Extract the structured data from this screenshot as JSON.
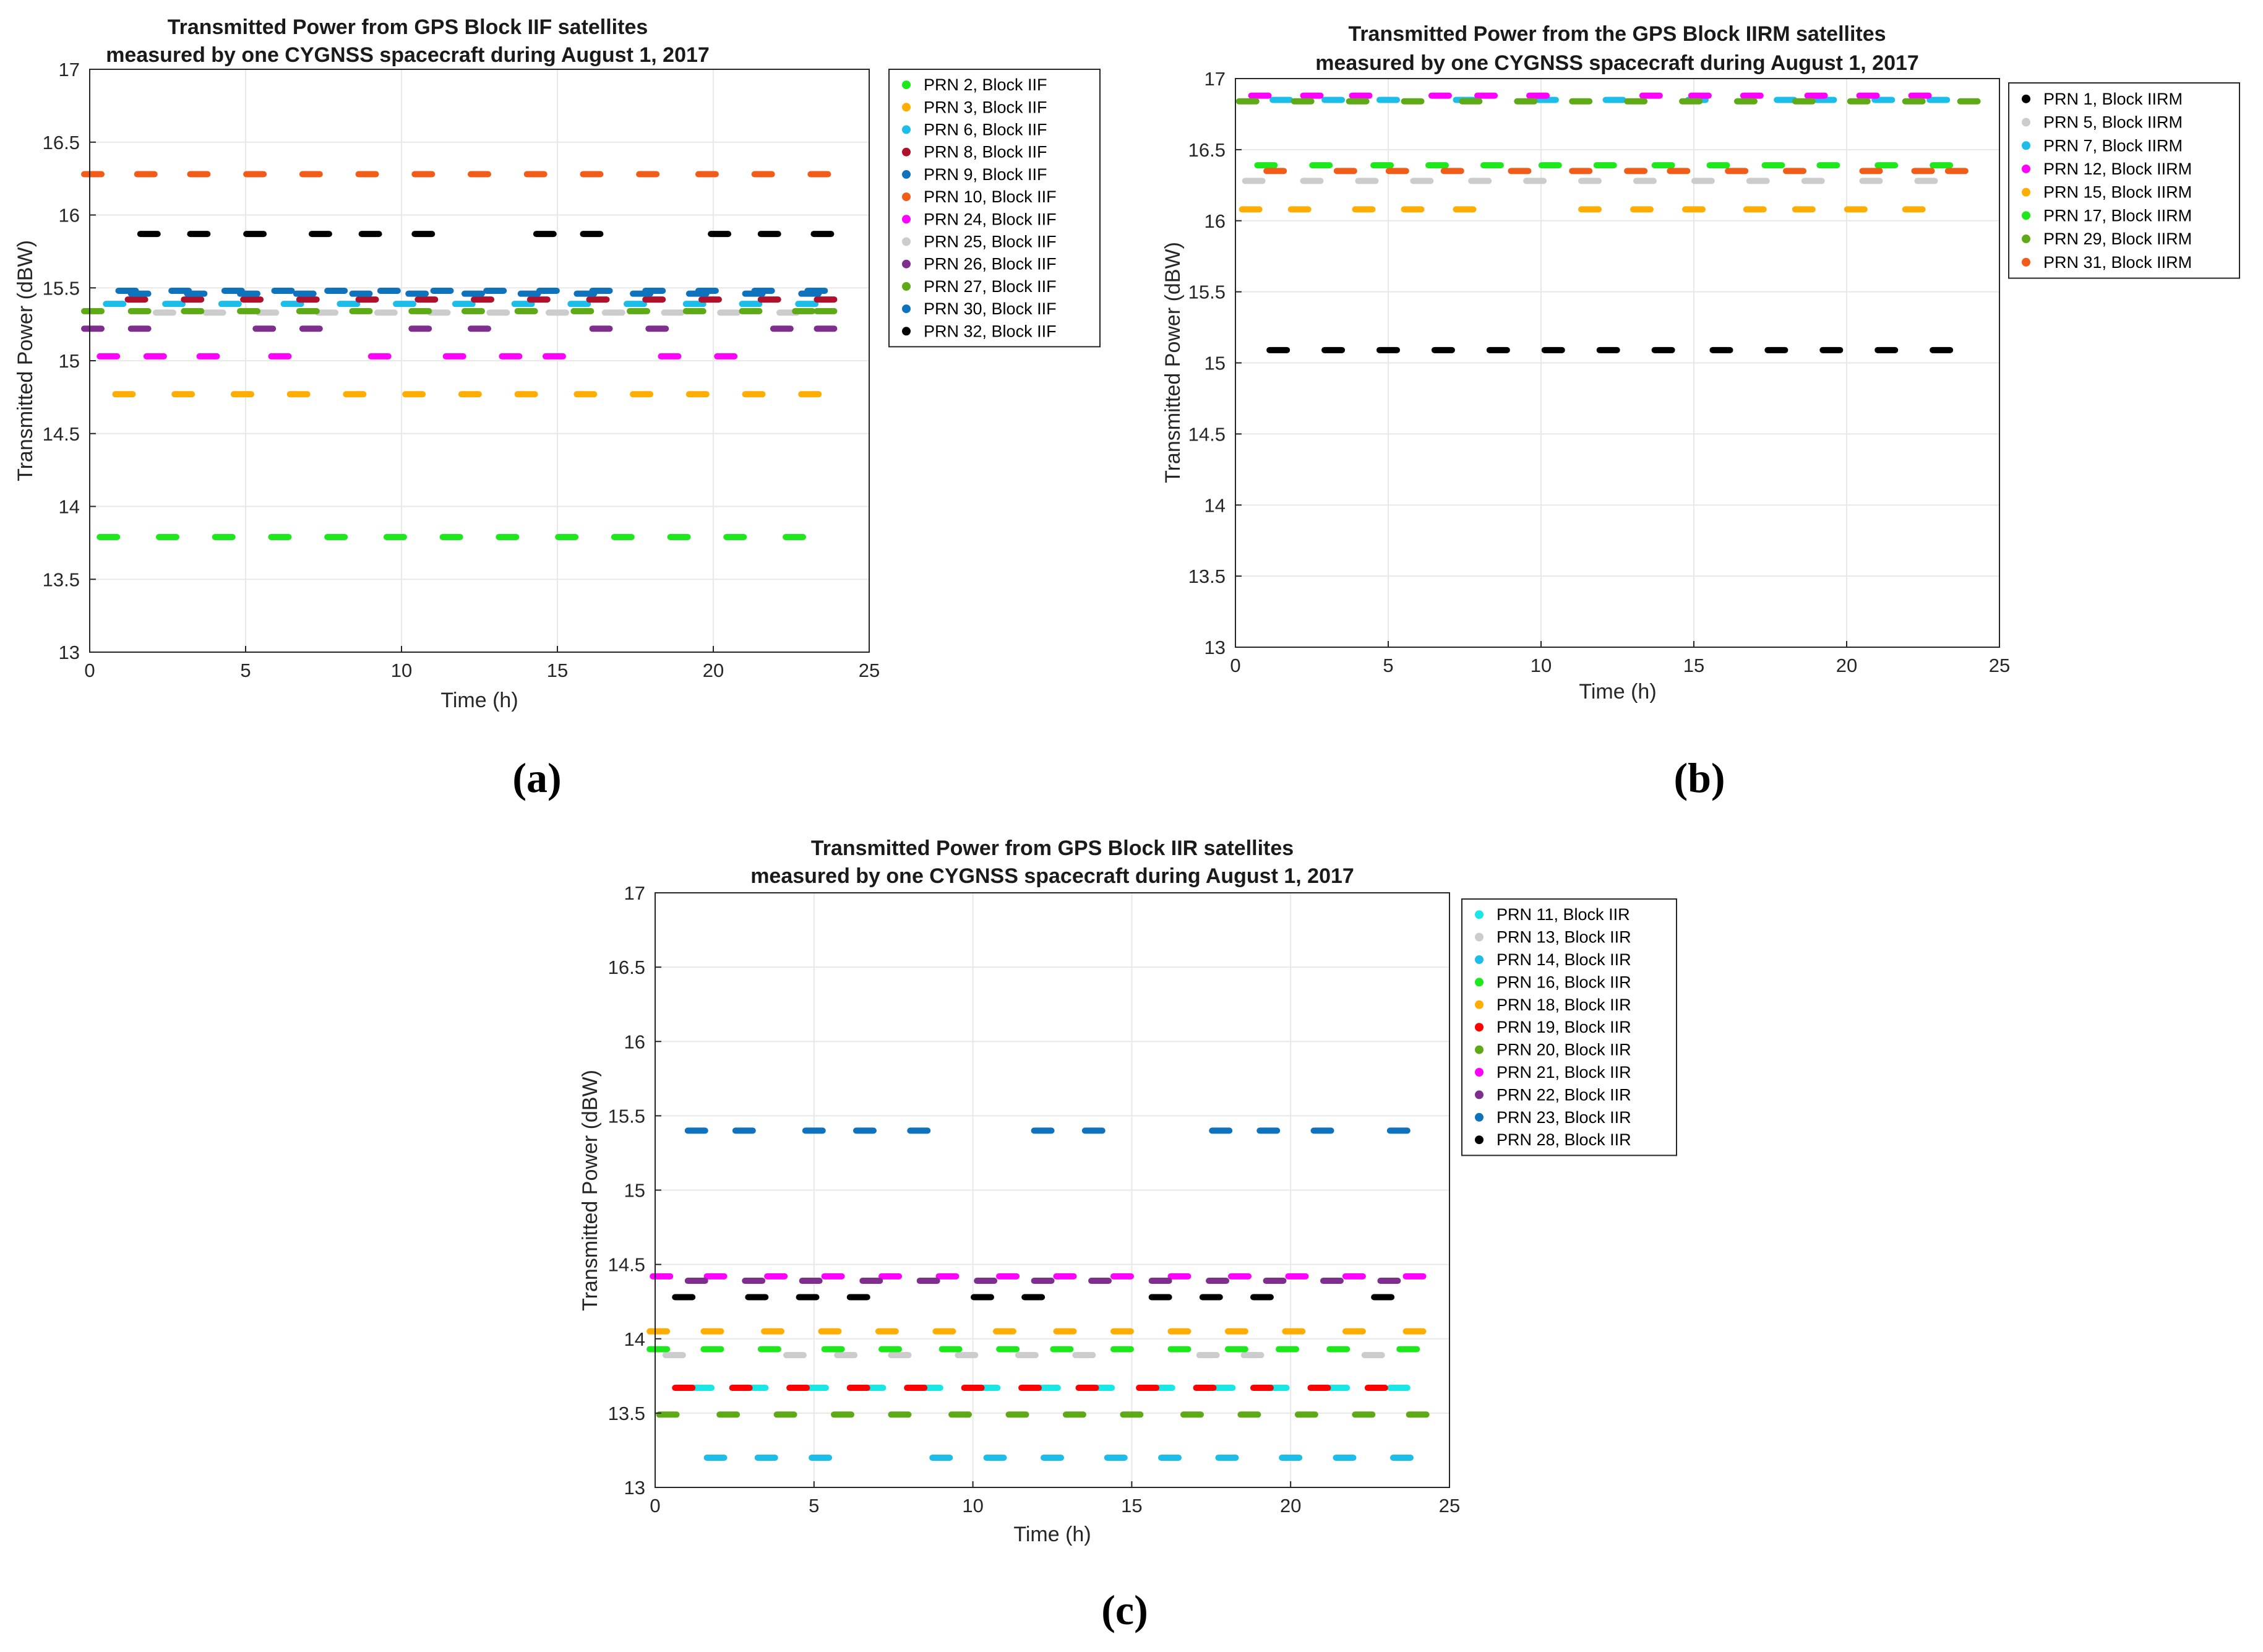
{
  "chart_data": [
    {
      "type": "scatter",
      "panel_label": "(a)",
      "title_lines": [
        "Transmitted Power from GPS Block IIF satellites",
        "measured by one CYGNSS spacecraft during August 1, 2017"
      ],
      "xlabel": "Time (h)",
      "ylabel": "Transmitted Power (dBW)",
      "xlim": [
        0,
        25
      ],
      "ylim": [
        13,
        17
      ],
      "xticks": [
        0,
        5,
        10,
        15,
        20,
        25
      ],
      "yticks": [
        13,
        13.5,
        14,
        14.5,
        15,
        15.5,
        16,
        16.5,
        17
      ],
      "ytick_labels": [
        "13",
        "13.5",
        "14",
        "14.5",
        "15",
        "15.5",
        "16",
        "16.5",
        "17"
      ],
      "grid": true,
      "legend_position": "outside-right",
      "series": [
        {
          "name": "PRN 2, Block IIF",
          "color": "#1ce81c",
          "y": 13.79,
          "x": [
            0.6,
            2.5,
            4.3,
            6.1,
            7.9,
            9.8,
            11.6,
            13.4,
            15.3,
            17.1,
            18.9,
            20.7,
            22.6
          ]
        },
        {
          "name": "PRN 3, Block IIF",
          "color": "#ffad00",
          "y": 14.77,
          "x": [
            1.1,
            3.0,
            4.9,
            6.7,
            8.5,
            10.4,
            12.2,
            14.0,
            15.9,
            17.7,
            19.5,
            21.3,
            23.1
          ]
        },
        {
          "name": "PRN 6, Block IIF",
          "color": "#1cbde8",
          "y": 15.39,
          "x": [
            0.8,
            2.7,
            4.5,
            6.5,
            8.3,
            10.1,
            12.0,
            13.9,
            15.7,
            17.5,
            19.4,
            21.2,
            23.0
          ]
        },
        {
          "name": "PRN 8, Block IIF",
          "color": "#b0102c",
          "y": 15.42,
          "x": [
            1.5,
            3.3,
            5.2,
            7.0,
            8.9,
            10.8,
            12.6,
            14.4,
            16.3,
            18.1,
            19.9,
            21.8,
            23.6
          ]
        },
        {
          "name": "PRN 9, Block IIF",
          "color": "#0f72bd",
          "y": 15.48,
          "x": [
            1.2,
            2.9,
            4.6,
            6.2,
            7.9,
            9.6,
            11.3,
            13.0,
            14.7,
            16.4,
            18.1,
            19.8,
            21.6,
            23.3
          ]
        },
        {
          "name": "PRN 10, Block IIF",
          "color": "#f25c19",
          "y": 16.28,
          "x": [
            0.1,
            1.8,
            3.5,
            5.3,
            7.1,
            8.9,
            10.7,
            12.5,
            14.3,
            16.1,
            17.9,
            19.8,
            21.6,
            23.4
          ]
        },
        {
          "name": "PRN 24, Block IIF",
          "color": "#ff00ff",
          "y": 15.03,
          "x": [
            0.6,
            2.1,
            3.8,
            6.1,
            9.3,
            11.7,
            13.5,
            14.9,
            18.6,
            20.4
          ]
        },
        {
          "name": "PRN 25, Block IIF",
          "color": "#cccccc",
          "y": 15.33,
          "x": [
            2.4,
            4.0,
            5.7,
            7.6,
            9.5,
            11.2,
            13.1,
            15.0,
            16.8,
            18.7,
            20.5,
            22.4
          ]
        },
        {
          "name": "PRN 26, Block IIF",
          "color": "#7e2f8e",
          "y": 15.22,
          "x": [
            0.1,
            1.6,
            5.6,
            7.1,
            10.6,
            12.5,
            16.4,
            18.2,
            22.2,
            23.6
          ]
        },
        {
          "name": "PRN 27, Block IIF",
          "color": "#5eaa16",
          "y": 15.34,
          "x": [
            0.1,
            1.6,
            3.3,
            5.1,
            7.0,
            8.7,
            10.6,
            12.3,
            14.0,
            15.8,
            17.6,
            19.4,
            21.2,
            22.9,
            23.6
          ]
        },
        {
          "name": "PRN 30, Block IIF",
          "color": "#0f72bd",
          "y": 15.46,
          "x": [
            1.6,
            3.4,
            5.1,
            6.9,
            8.7,
            10.5,
            12.3,
            14.1,
            15.9,
            17.7,
            19.5,
            21.3,
            23.1
          ]
        },
        {
          "name": "PRN 32, Block IIF",
          "color": "#000000",
          "y": 15.87,
          "x": [
            1.9,
            3.5,
            5.3,
            7.4,
            9.0,
            10.7,
            14.6,
            16.1,
            20.2,
            21.8,
            23.5
          ]
        }
      ]
    },
    {
      "type": "scatter",
      "panel_label": "(b)",
      "title_lines": [
        "Transmitted Power from the GPS Block IIRM satellites",
        "measured by one CYGNSS spacecraft during August 1, 2017"
      ],
      "xlabel": "Time (h)",
      "ylabel": "Transmitted Power (dBW)",
      "xlim": [
        0,
        25
      ],
      "ylim": [
        13,
        17
      ],
      "xticks": [
        0,
        5,
        10,
        15,
        20,
        25
      ],
      "yticks": [
        13,
        13.5,
        14,
        14.5,
        15,
        15.5,
        16,
        16.5,
        17
      ],
      "ytick_labels": [
        "13",
        "13.5",
        "14",
        "14.5",
        "15",
        "15.5",
        "16",
        "16.5",
        "17"
      ],
      "grid": true,
      "legend_position": "outside-right",
      "series": [
        {
          "name": "PRN 1, Block IIRM",
          "color": "#000000",
          "y": 15.09,
          "x": [
            1.4,
            3.2,
            5.0,
            6.8,
            8.6,
            10.4,
            12.2,
            14.0,
            15.9,
            17.7,
            19.5,
            21.3,
            23.1
          ]
        },
        {
          "name": "PRN 5, Block IIRM",
          "color": "#cccccc",
          "y": 16.28,
          "x": [
            0.6,
            2.5,
            4.3,
            6.1,
            8.0,
            9.8,
            11.6,
            13.4,
            15.3,
            17.1,
            18.9,
            20.8,
            22.6
          ]
        },
        {
          "name": "PRN 7, Block IIRM",
          "color": "#1cbde8",
          "y": 16.85,
          "x": [
            1.5,
            3.2,
            5.0,
            7.5,
            10.2,
            12.4,
            15.1,
            18.0,
            19.3,
            21.2,
            23.0
          ]
        },
        {
          "name": "PRN 12, Block IIRM",
          "color": "#ff00ff",
          "y": 16.88,
          "x": [
            0.8,
            2.5,
            4.1,
            6.7,
            8.2,
            9.9,
            13.6,
            15.2,
            16.9,
            19.0,
            20.7,
            22.4
          ]
        },
        {
          "name": "PRN 15, Block IIRM",
          "color": "#ffad00",
          "y": 16.08,
          "x": [
            0.5,
            2.1,
            4.2,
            5.8,
            7.5,
            11.6,
            13.3,
            15.0,
            17.0,
            18.6,
            20.3,
            22.2
          ]
        },
        {
          "name": "PRN 17, Block IIRM",
          "color": "#1ce81c",
          "y": 16.39,
          "x": [
            1.0,
            2.8,
            4.8,
            6.6,
            8.4,
            10.3,
            12.1,
            14.0,
            15.8,
            17.6,
            19.4,
            21.3,
            23.1
          ]
        },
        {
          "name": "PRN 29, Block IIRM",
          "color": "#5eaa16",
          "y": 16.84,
          "x": [
            0.4,
            2.2,
            4.0,
            5.8,
            7.7,
            9.5,
            11.3,
            13.1,
            14.9,
            16.7,
            18.6,
            20.4,
            22.2,
            24.0
          ]
        },
        {
          "name": "PRN 31, Block IIRM",
          "color": "#f25c19",
          "y": 16.35,
          "x": [
            1.3,
            3.6,
            5.3,
            7.1,
            9.3,
            11.3,
            13.1,
            14.5,
            16.4,
            18.3,
            20.8,
            22.5,
            23.6
          ]
        }
      ]
    },
    {
      "type": "scatter",
      "panel_label": "(c)",
      "title_lines": [
        "Transmitted Power from GPS Block IIR satellites",
        "measured by one CYGNSS spacecraft during August 1, 2017"
      ],
      "xlabel": "Time (h)",
      "ylabel": "Transmitted Power (dBW)",
      "xlim": [
        0,
        25
      ],
      "ylim": [
        13,
        17
      ],
      "xticks": [
        0,
        5,
        10,
        15,
        20,
        25
      ],
      "yticks": [
        13,
        13.5,
        14,
        14.5,
        15,
        15.5,
        16,
        16.5,
        17
      ],
      "ytick_labels": [
        "13",
        "13.5",
        "14",
        "14.5",
        "15",
        "15.5",
        "16",
        "16.5",
        "17"
      ],
      "grid": true,
      "legend_position": "outside-right",
      "series": [
        {
          "name": "PRN 11, Block IIR",
          "color": "#19e6e6",
          "y": 13.67,
          "x": [
            1.5,
            3.2,
            5.1,
            6.9,
            8.7,
            10.5,
            12.4,
            14.1,
            16.0,
            17.9,
            19.6,
            21.5,
            23.4
          ]
        },
        {
          "name": "PRN 13, Block IIR",
          "color": "#cccccc",
          "y": 13.89,
          "x": [
            0.6,
            4.4,
            6.0,
            7.7,
            9.8,
            11.7,
            13.5,
            17.4,
            18.8,
            22.6
          ]
        },
        {
          "name": "PRN 14, Block IIR",
          "color": "#1cbde8",
          "y": 13.2,
          "x": [
            1.9,
            3.5,
            5.2,
            9.0,
            10.7,
            12.5,
            14.5,
            16.2,
            18.0,
            20.0,
            21.7,
            23.5
          ]
        },
        {
          "name": "PRN 16, Block IIR",
          "color": "#1ce81c",
          "y": 13.93,
          "x": [
            0.1,
            1.8,
            3.6,
            5.6,
            7.4,
            9.3,
            11.1,
            12.8,
            14.7,
            16.5,
            18.3,
            19.9,
            21.5,
            23.7
          ]
        },
        {
          "name": "PRN 18, Block IIR",
          "color": "#ffad00",
          "y": 14.05,
          "x": [
            0.1,
            1.8,
            3.7,
            5.5,
            7.3,
            9.1,
            11.0,
            12.9,
            14.7,
            16.5,
            18.3,
            20.1,
            22.0,
            23.9
          ]
        },
        {
          "name": "PRN 19, Block IIR",
          "color": "#ff0000",
          "y": 13.67,
          "x": [
            0.9,
            2.7,
            4.5,
            6.4,
            8.2,
            10.0,
            11.8,
            13.6,
            15.5,
            17.3,
            19.1,
            20.9,
            22.7
          ]
        },
        {
          "name": "PRN 20, Block IIR",
          "color": "#5eaa16",
          "y": 13.49,
          "x": [
            0.4,
            2.3,
            4.1,
            5.9,
            7.7,
            9.6,
            11.4,
            13.2,
            15.0,
            16.9,
            18.7,
            20.5,
            22.3,
            24.0
          ]
        },
        {
          "name": "PRN 21, Block IIR",
          "color": "#ff00ff",
          "y": 14.42,
          "x": [
            0.2,
            1.9,
            3.8,
            5.6,
            7.4,
            9.2,
            11.1,
            12.9,
            14.7,
            16.5,
            18.4,
            20.2,
            22.0,
            23.9
          ]
        },
        {
          "name": "PRN 22, Block IIR",
          "color": "#7e2f8e",
          "y": 14.39,
          "x": [
            1.3,
            3.1,
            4.9,
            6.8,
            8.6,
            10.4,
            12.2,
            14.0,
            15.9,
            17.7,
            19.5,
            21.3,
            23.1
          ]
        },
        {
          "name": "PRN 23, Block IIR",
          "color": "#0f72bd",
          "y": 15.4,
          "x": [
            1.3,
            2.8,
            5.0,
            6.6,
            8.3,
            12.2,
            13.8,
            17.8,
            19.3,
            21.0,
            23.4
          ]
        },
        {
          "name": "PRN 28, Block IIR",
          "color": "#000000",
          "y": 14.28,
          "x": [
            0.9,
            3.2,
            4.8,
            6.4,
            10.3,
            11.9,
            15.9,
            17.5,
            19.1,
            22.9
          ]
        }
      ]
    }
  ]
}
